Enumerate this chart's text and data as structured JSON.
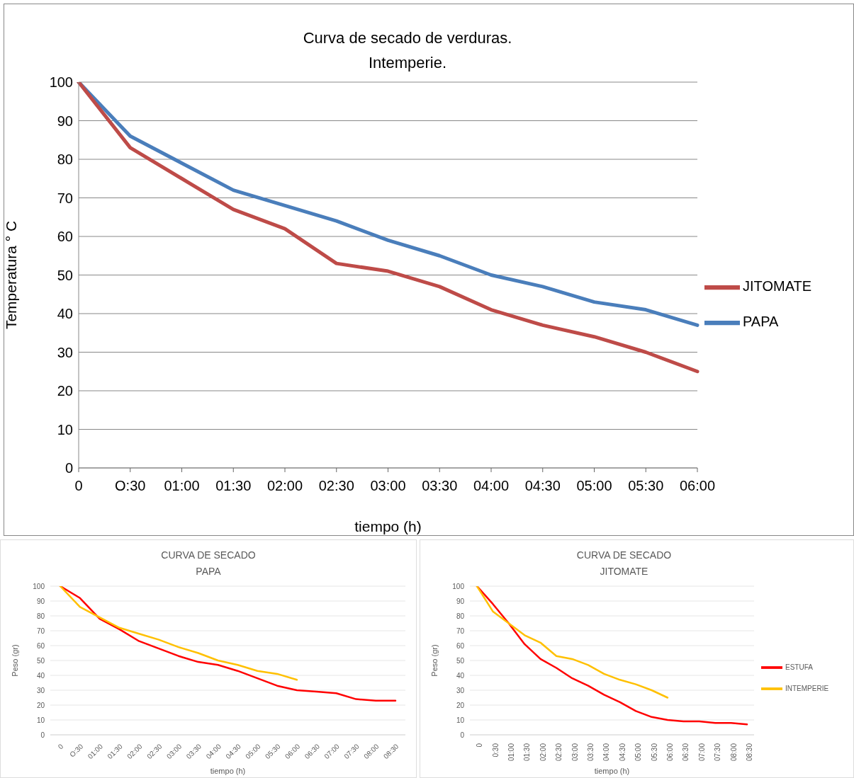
{
  "chart_data": [
    {
      "type": "line",
      "title": "Curva de secado de verduras.\nIntemperie.",
      "xlabel": "tiempo (h)",
      "ylabel": "Temperatura ° C",
      "categories": [
        "0",
        "O:30",
        "01:00",
        "01:30",
        "02:00",
        "02:30",
        "03:00",
        "03:30",
        "04:00",
        "04:30",
        "05:00",
        "05:30",
        "06:00"
      ],
      "ylim": [
        0,
        100
      ],
      "yticks": [
        0,
        10,
        20,
        30,
        40,
        50,
        60,
        70,
        80,
        90,
        100
      ],
      "grid": "y",
      "legend": "right",
      "marker": "none",
      "line_style": "solid",
      "series": [
        {
          "name": "PAPA",
          "color": "#4a7ebb",
          "values": [
            100,
            86,
            79,
            72,
            68,
            64,
            59,
            55,
            50,
            47,
            43,
            41,
            37
          ]
        },
        {
          "name": "JITOMATE",
          "color": "#be4b48",
          "values": [
            100,
            83,
            75,
            67,
            62,
            53,
            51,
            47,
            41,
            37,
            34,
            30,
            25
          ]
        }
      ]
    },
    {
      "type": "line",
      "title": "CURVA DE SECADO\nPAPA",
      "xlabel": "tiempo (h)",
      "ylabel": "Peso (gr)",
      "categories": [
        "0",
        "O:30",
        "01:00",
        "01:30",
        "02:00",
        "02:30",
        "03:00",
        "03:30",
        "04:00",
        "04:30",
        "05:00",
        "05:30",
        "06:00",
        "06:30",
        "07:00",
        "07:30",
        "08:00",
        "08:30"
      ],
      "ylim": [
        0,
        100
      ],
      "yticks": [
        0,
        10,
        20,
        30,
        40,
        50,
        60,
        70,
        80,
        90,
        100
      ],
      "grid": "y",
      "legend": false,
      "marker": "none",
      "line_style": "solid",
      "series": [
        {
          "color": "#ff0000",
          "values": [
            100,
            92,
            78,
            71,
            63,
            58,
            53,
            49,
            47,
            43,
            38,
            33,
            30,
            29,
            28,
            24,
            23,
            23
          ]
        },
        {
          "color": "#ffc000",
          "values": [
            100,
            86,
            79,
            72,
            68,
            64,
            59,
            55,
            50,
            47,
            43,
            41,
            37,
            null,
            null,
            null,
            null,
            null
          ]
        }
      ]
    },
    {
      "type": "line",
      "title": "CURVA DE SECADO\nJITOMATE",
      "xlabel": "tiempo (h)",
      "ylabel": "Peso (gr)",
      "categories": [
        "0",
        "0:30",
        "01:00",
        "01:30",
        "02:00",
        "02:30",
        "03:00",
        "03:30",
        "04:00",
        "04:30",
        "05:00",
        "05:30",
        "06:00",
        "06:30",
        "07:00",
        "07:30",
        "08:00",
        "08:30"
      ],
      "ylim": [
        0,
        100
      ],
      "yticks": [
        0,
        10,
        20,
        30,
        40,
        50,
        60,
        70,
        80,
        90,
        100
      ],
      "grid": "y",
      "legend": "right",
      "marker": "none",
      "line_style": "solid",
      "series": [
        {
          "name": "ESTUFA",
          "color": "#ff0000",
          "values": [
            100,
            88,
            75,
            61,
            51,
            45,
            38,
            33,
            27,
            22,
            16,
            12,
            10,
            9,
            9,
            8,
            8,
            7
          ]
        },
        {
          "name": "INTEMPERIE",
          "color": "#ffc000",
          "values": [
            100,
            83,
            75,
            67,
            62,
            53,
            51,
            47,
            41,
            37,
            34,
            30,
            25,
            null,
            null,
            null,
            null,
            null
          ]
        }
      ]
    }
  ]
}
